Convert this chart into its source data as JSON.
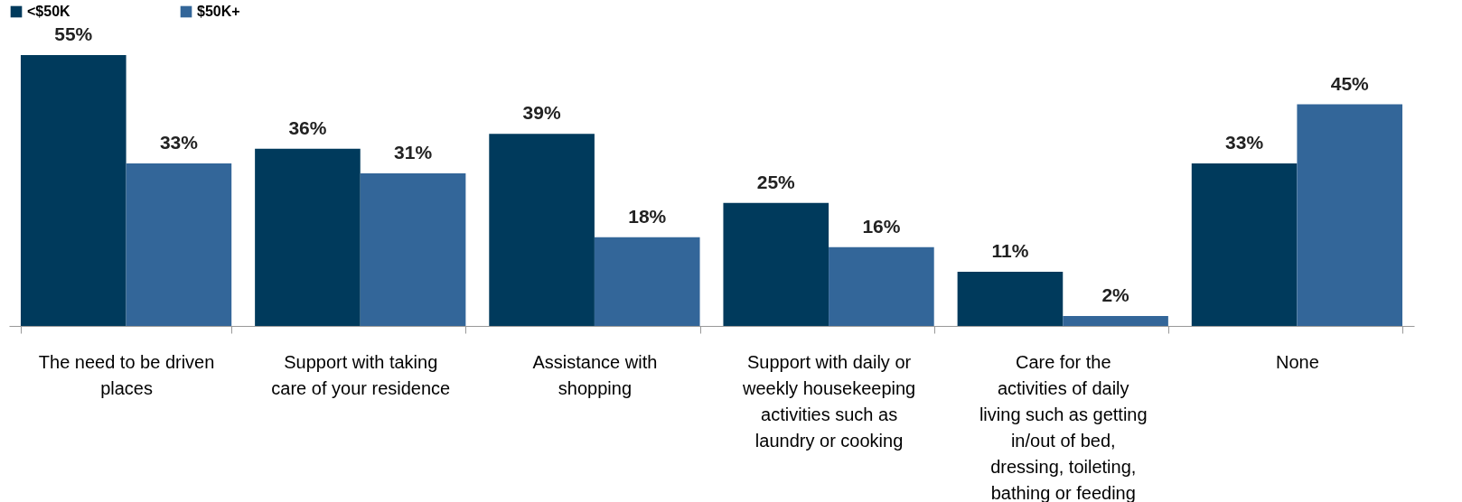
{
  "chart_data": {
    "type": "bar",
    "categories": [
      "The need to be driven places",
      "Support with taking care of your residence",
      "Assistance with shopping",
      "Support with daily or weekly housekeeping activities such as laundry or cooking",
      "Care for the activities of daily living such as getting in/out of bed, dressing, toileting, bathing or feeding",
      "None"
    ],
    "series": [
      {
        "name": "<$50K",
        "color": "#003a5c",
        "values": [
          55,
          36,
          39,
          25,
          11,
          33
        ],
        "value_labels": [
          "55%",
          "36%",
          "39%",
          "25%",
          "11%",
          "33%"
        ]
      },
      {
        "name": "$50K+",
        "color": "#336699",
        "values": [
          33,
          31,
          18,
          16,
          2,
          45
        ],
        "value_labels": [
          "33%",
          "31%",
          "18%",
          "16%",
          "2%",
          "45%"
        ]
      }
    ],
    "legend": "top",
    "grid": false
  }
}
